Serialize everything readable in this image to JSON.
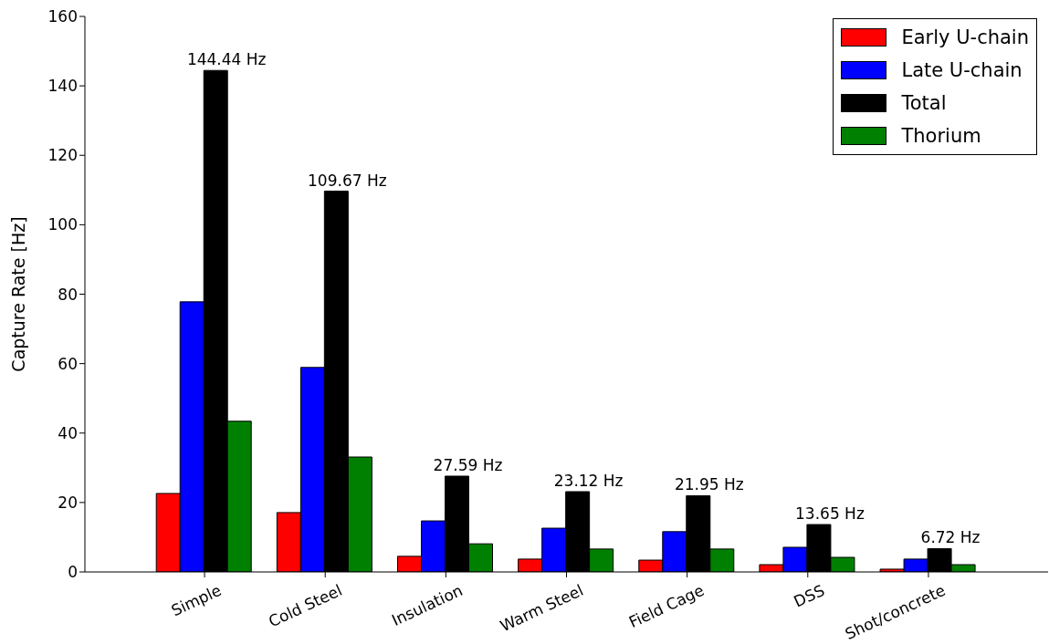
{
  "chart_data": {
    "type": "bar",
    "ylabel": "Capture Rate [Hz]",
    "categories": [
      "Simple",
      "Cold Steel",
      "Insulation",
      "Warm Steel",
      "Field Cage",
      "DSS",
      "Shot/concrete"
    ],
    "series": [
      {
        "name": "Early U-chain",
        "color": "#ff0000",
        "values": [
          22.6,
          17.1,
          4.5,
          3.7,
          3.4,
          2.1,
          0.8
        ]
      },
      {
        "name": "Late U-chain",
        "color": "#0000ff",
        "values": [
          77.8,
          58.9,
          14.7,
          12.6,
          11.6,
          7.1,
          3.7
        ]
      },
      {
        "name": "Total",
        "color": "#000000",
        "values": [
          144.44,
          109.67,
          27.59,
          23.12,
          21.95,
          13.65,
          6.72
        ],
        "value_labels": [
          "144.44 Hz",
          "109.67 Hz",
          "27.59 Hz",
          "23.12 Hz",
          "21.95 Hz",
          "13.65 Hz",
          "6.72 Hz"
        ]
      },
      {
        "name": "Thorium",
        "color": "#008000",
        "values": [
          43.4,
          33.1,
          8.1,
          6.6,
          6.6,
          4.2,
          2.1
        ]
      }
    ],
    "ylim": [
      0,
      160
    ],
    "yticks": [
      0,
      20,
      40,
      60,
      80,
      100,
      120,
      140,
      160
    ],
    "grid": false,
    "legend": "top right"
  }
}
